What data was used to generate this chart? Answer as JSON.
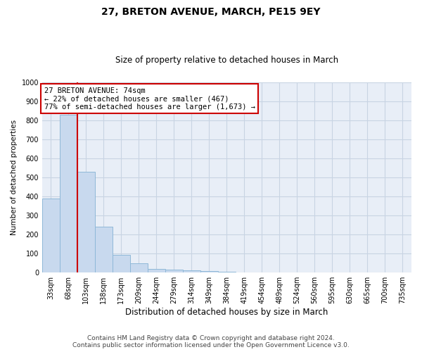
{
  "title1": "27, BRETON AVENUE, MARCH, PE15 9EY",
  "title2": "Size of property relative to detached houses in March",
  "xlabel": "Distribution of detached houses by size in March",
  "ylabel": "Number of detached properties",
  "categories": [
    "33sqm",
    "68sqm",
    "103sqm",
    "138sqm",
    "173sqm",
    "209sqm",
    "244sqm",
    "279sqm",
    "314sqm",
    "349sqm",
    "384sqm",
    "419sqm",
    "454sqm",
    "489sqm",
    "524sqm",
    "560sqm",
    "595sqm",
    "630sqm",
    "665sqm",
    "700sqm",
    "735sqm"
  ],
  "values": [
    390,
    830,
    530,
    240,
    95,
    50,
    20,
    17,
    12,
    8,
    6,
    0,
    0,
    0,
    0,
    0,
    0,
    0,
    0,
    0,
    0
  ],
  "bar_color": "#c8d9ee",
  "bar_edge_color": "#8fb8d8",
  "grid_color": "#c8d4e3",
  "background_color": "#e8eef7",
  "annotation_box_text": "27 BRETON AVENUE: 74sqm\n← 22% of detached houses are smaller (467)\n77% of semi-detached houses are larger (1,673) →",
  "annotation_box_color": "#cc0000",
  "vline_color": "#cc0000",
  "vline_x": 1.5,
  "ylim": [
    0,
    1000
  ],
  "yticks": [
    0,
    100,
    200,
    300,
    400,
    500,
    600,
    700,
    800,
    900,
    1000
  ],
  "footnote1": "Contains HM Land Registry data © Crown copyright and database right 2024.",
  "footnote2": "Contains public sector information licensed under the Open Government Licence v3.0.",
  "title1_fontsize": 10,
  "title2_fontsize": 8.5,
  "xlabel_fontsize": 8.5,
  "ylabel_fontsize": 7.5,
  "tick_fontsize": 7,
  "annot_fontsize": 7.5,
  "footnote_fontsize": 6.5
}
